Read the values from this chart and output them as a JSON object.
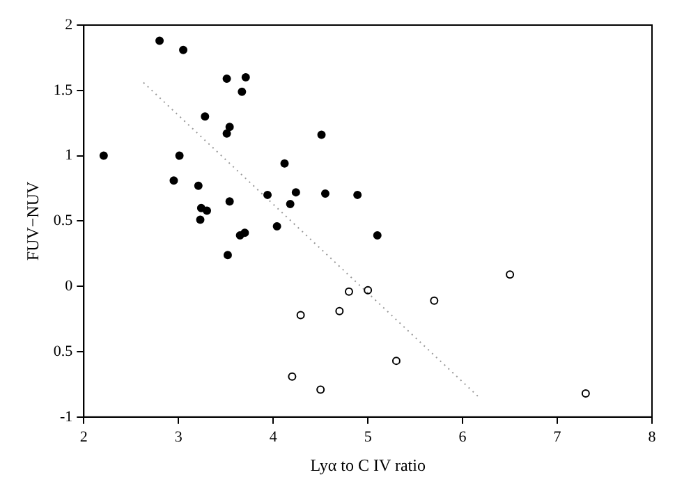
{
  "chart_data": {
    "type": "scatter",
    "xlabel": "Lyα to C IV ratio",
    "ylabel": "FUV−NUV",
    "xlim": [
      2,
      8
    ],
    "ylim": [
      -1,
      2
    ],
    "xticks": [
      2,
      3,
      4,
      5,
      6,
      7,
      8
    ],
    "yticks": [
      -1,
      {
        "value": -0.5,
        "label": "0.5"
      },
      0,
      0.5,
      1,
      1.5,
      2
    ],
    "grid": false,
    "legend": false,
    "marker": "circle",
    "series": [
      {
        "color": "#000000",
        "x": [
          2.21,
          2.8,
          3.05,
          2.95,
          3.01,
          3.21,
          3.24,
          3.3,
          3.23,
          3.28,
          3.51,
          3.51,
          3.54,
          3.54,
          3.52,
          3.67,
          3.71,
          3.65,
          3.7,
          3.94,
          4.04,
          4.12,
          4.18,
          4.24,
          4.51,
          4.55,
          4.89,
          5.1
        ],
        "values": [
          1.0,
          1.88,
          1.81,
          0.81,
          1.0,
          0.77,
          0.6,
          0.58,
          0.51,
          1.3,
          1.59,
          1.17,
          1.22,
          0.65,
          0.24,
          1.49,
          1.6,
          0.39,
          0.41,
          0.7,
          0.46,
          0.94,
          0.63,
          0.72,
          1.16,
          0.71,
          0.7,
          0.39
        ]
      },
      {
        "color": "#000000",
        "x": [
          4.29,
          4.7,
          4.8,
          4.2,
          4.5,
          5.0,
          5.7,
          6.5,
          5.3,
          7.3
        ],
        "values": [
          -0.22,
          -0.19,
          -0.04,
          -0.69,
          -0.79,
          -0.03,
          -0.11,
          0.09,
          -0.57,
          -0.82
        ]
      },
      {
        "type": "line",
        "color": "#999999",
        "line_style": "dotted",
        "marker": "none",
        "x": [
          2.63,
          6.16
        ],
        "values": [
          1.56,
          -0.84
        ]
      }
    ]
  }
}
